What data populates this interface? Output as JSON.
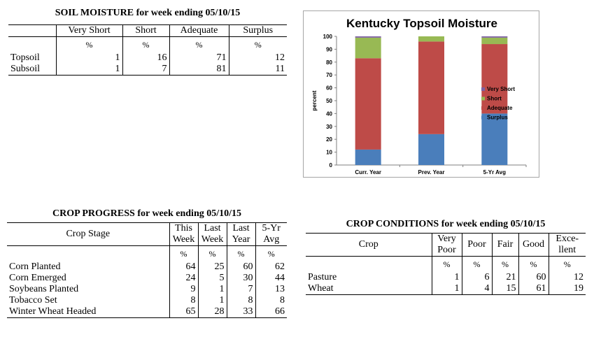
{
  "soil": {
    "title": "SOIL MOISTURE for week ending 05/10/15",
    "headers": [
      "Very Short",
      "Short",
      "Adequate",
      "Surplus"
    ],
    "units": [
      "%",
      "%",
      "%",
      "%"
    ],
    "rows": [
      {
        "label": "Topsoil",
        "values": [
          "1",
          "16",
          "71",
          "12"
        ]
      },
      {
        "label": "Subsoil",
        "values": [
          "1",
          "7",
          "81",
          "11"
        ]
      }
    ]
  },
  "progress": {
    "title": "CROP PROGRESS for week ending 05/10/15",
    "stage_header": "Crop Stage",
    "headers": [
      [
        "This",
        "Week"
      ],
      [
        "Last",
        "Week"
      ],
      [
        "Last",
        "Year"
      ],
      [
        "5-Yr",
        "Avg"
      ]
    ],
    "units": [
      "%",
      "%",
      "%",
      "%"
    ],
    "rows": [
      {
        "label": "Corn Planted",
        "values": [
          "64",
          "25",
          "60",
          "62"
        ]
      },
      {
        "label": "Corn Emerged",
        "values": [
          "24",
          "5",
          "30",
          "44"
        ]
      },
      {
        "label": "Soybeans Planted",
        "values": [
          "9",
          "1",
          "7",
          "13"
        ]
      },
      {
        "label": "Tobacco Set",
        "values": [
          "8",
          "1",
          "8",
          "8"
        ]
      },
      {
        "label": "Winter Wheat Headed",
        "values": [
          "65",
          "28",
          "33",
          "66"
        ]
      }
    ]
  },
  "conditions": {
    "title": "CROP CONDITIONS for week ending 05/10/15",
    "crop_header": "Crop",
    "headers": [
      [
        "Very",
        "Poor"
      ],
      [
        "Poor",
        ""
      ],
      [
        "Fair",
        ""
      ],
      [
        "Good",
        ""
      ],
      [
        "Exce-",
        "llent"
      ]
    ],
    "units": [
      "%",
      "%",
      "%",
      "%",
      "%"
    ],
    "rows": [
      {
        "label": "Pasture",
        "values": [
          "1",
          "6",
          "21",
          "60",
          "12"
        ]
      },
      {
        "label": "Wheat",
        "values": [
          "1",
          "4",
          "15",
          "61",
          "19"
        ]
      }
    ]
  },
  "chart_data": {
    "type": "bar",
    "stacked": true,
    "title": "Kentucky Topsoil Moisture",
    "xlabel": "",
    "ylabel": "percent",
    "ylim": [
      0,
      100
    ],
    "yticks": [
      0,
      10,
      20,
      30,
      40,
      50,
      60,
      70,
      80,
      90,
      100
    ],
    "grid": false,
    "legend_position": "right",
    "categories": [
      "Curr. Year",
      "Prev. Year",
      "5-Yr Avg"
    ],
    "series": [
      {
        "name": "Surplus",
        "color": "#4a7ebb",
        "values": [
          12,
          24,
          40
        ]
      },
      {
        "name": "Adequate",
        "color": "#be4b48",
        "values": [
          71,
          72,
          54
        ]
      },
      {
        "name": "Short",
        "color": "#98b954",
        "values": [
          16,
          4,
          5
        ]
      },
      {
        "name": "Very Short",
        "color": "#7d60a0",
        "values": [
          1,
          0,
          1
        ]
      }
    ],
    "legend_order": [
      "Very Short",
      "Short",
      "Adequate",
      "Surplus"
    ]
  }
}
